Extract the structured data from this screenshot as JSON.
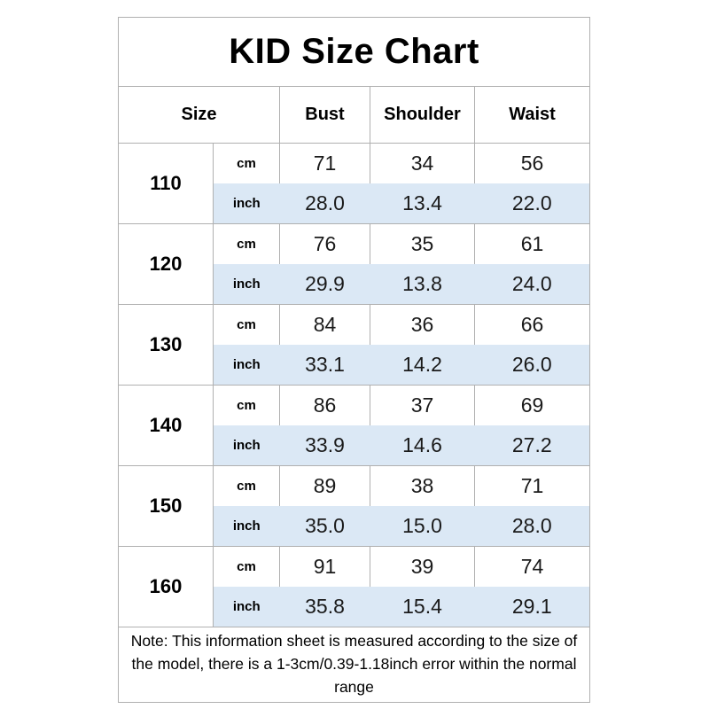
{
  "chart_data": {
    "type": "table",
    "title": "KID Size Chart",
    "columns": [
      "Size",
      "Bust",
      "Shoulder",
      "Waist"
    ],
    "unit_labels": [
      "cm",
      "inch"
    ],
    "rows": [
      {
        "size": "110",
        "cm": [
          "71",
          "34",
          "56"
        ],
        "inch": [
          "28.0",
          "13.4",
          "22.0"
        ]
      },
      {
        "size": "120",
        "cm": [
          "76",
          "35",
          "61"
        ],
        "inch": [
          "29.9",
          "13.8",
          "24.0"
        ]
      },
      {
        "size": "130",
        "cm": [
          "84",
          "36",
          "66"
        ],
        "inch": [
          "33.1",
          "14.2",
          "26.0"
        ]
      },
      {
        "size": "140",
        "cm": [
          "86",
          "37",
          "69"
        ],
        "inch": [
          "33.9",
          "14.6",
          "27.2"
        ]
      },
      {
        "size": "150",
        "cm": [
          "89",
          "38",
          "71"
        ],
        "inch": [
          "35.0",
          "15.0",
          "28.0"
        ]
      },
      {
        "size": "160",
        "cm": [
          "91",
          "39",
          "74"
        ],
        "inch": [
          "35.8",
          "15.4",
          "29.1"
        ]
      }
    ],
    "note": "Note: This information sheet is measured according to the size of the model, there is a 1-3cm/0.39-1.18inch error within the normal range",
    "colors": {
      "inch_row_background": "#dbe8f5",
      "border": "#b0b0b0",
      "text": "#141414"
    },
    "layout": {
      "grid": "on",
      "legend": "none"
    }
  }
}
